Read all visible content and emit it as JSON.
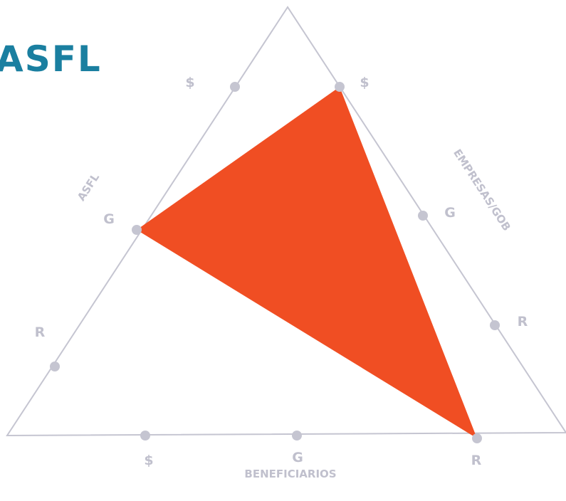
{
  "logo": {
    "text": "ASFL",
    "color": "#1a7fa0"
  },
  "axes": {
    "left": "ASFL",
    "right": "EMPRESAS/GOB",
    "bottom": "BENEFICIARIOS"
  },
  "markers": {
    "left": [
      "$",
      "G",
      "R"
    ],
    "right": [
      "$",
      "G",
      "R"
    ],
    "bottom": [
      "$",
      "G",
      "R"
    ]
  },
  "colors": {
    "frame": "#c5c5d1",
    "marker": "#c5c5d1",
    "label": "#c0c0cd",
    "highlight": "#f04e23"
  }
}
